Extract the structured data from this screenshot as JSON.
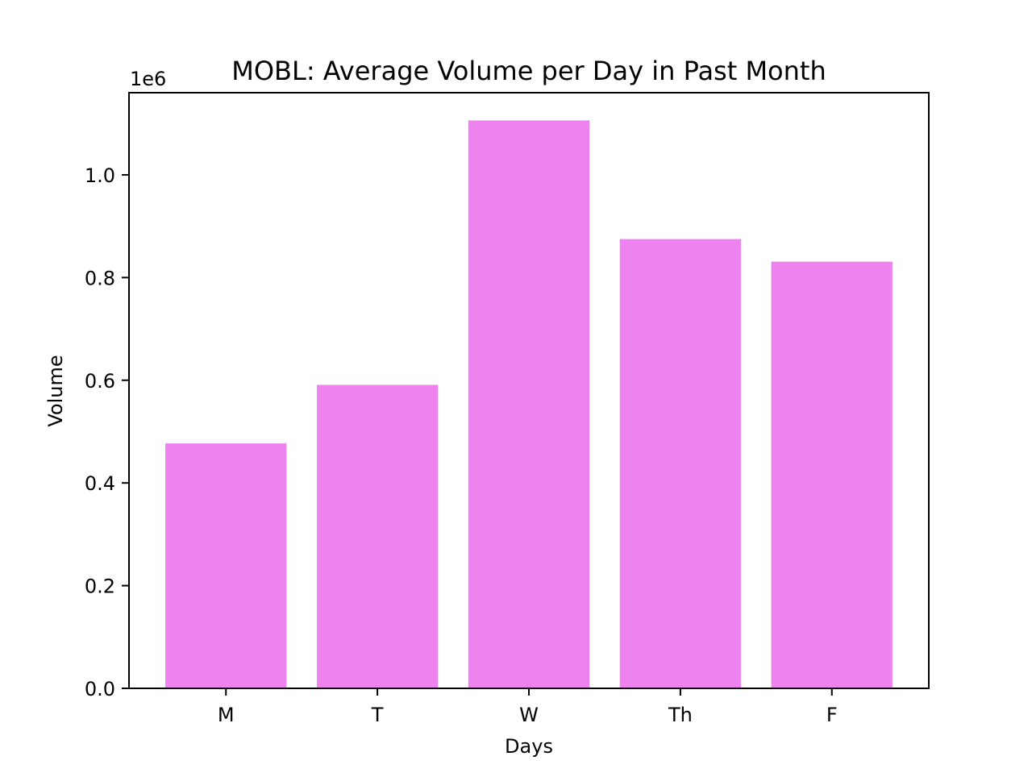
{
  "chart_data": {
    "type": "bar",
    "title": "MOBL: Average Volume per Day in Past Month",
    "xlabel": "Days",
    "ylabel": "Volume",
    "y_offset_label": "1e6",
    "categories": [
      "M",
      "T",
      "W",
      "Th",
      "F"
    ],
    "values": [
      477000,
      591000,
      1106000,
      875000,
      831000
    ],
    "ylim": [
      0,
      1160000
    ],
    "yticks": [
      0,
      200000,
      400000,
      600000,
      800000,
      1000000
    ],
    "ytick_labels": [
      "0.0",
      "0.2",
      "0.4",
      "0.6",
      "0.8",
      "1.0"
    ],
    "bar_color": "#ee82ee",
    "grid": false,
    "legend": "none"
  }
}
